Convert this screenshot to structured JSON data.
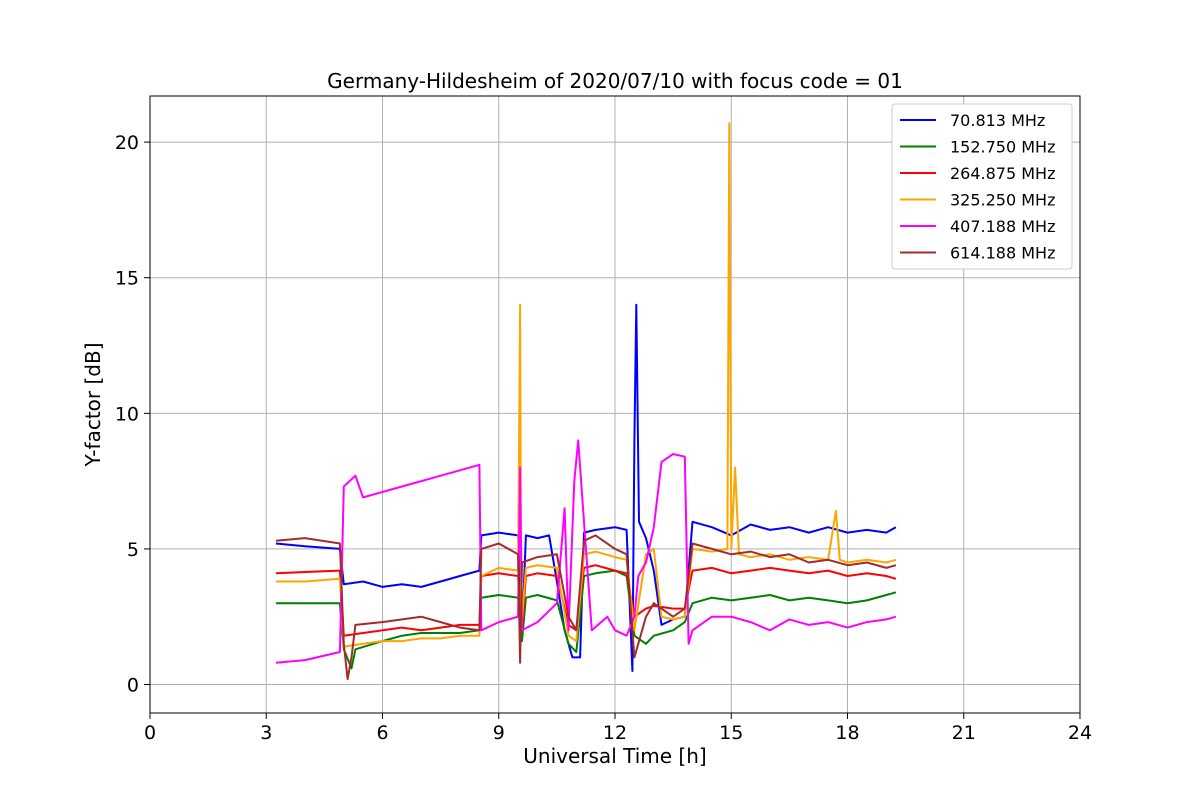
{
  "chart_data": {
    "type": "line",
    "title": "Germany-Hildesheim of 2020/07/10 with focus code = 01",
    "xlabel": "Universal Time [h]",
    "ylabel": "Y-factor [dB]",
    "xlim": [
      0,
      24
    ],
    "ylim": [
      -1.05,
      21.7
    ],
    "x_ticks": [
      0,
      3,
      6,
      9,
      12,
      15,
      18,
      21,
      24
    ],
    "y_ticks": [
      0,
      5,
      10,
      15,
      20
    ],
    "grid": true,
    "legend_position": "top-right",
    "series": [
      {
        "name": "  70.813 MHz",
        "color": "#0000ff",
        "points": [
          [
            3.25,
            5.2
          ],
          [
            4.0,
            5.1
          ],
          [
            4.9,
            5.0
          ],
          [
            5.0,
            3.7
          ],
          [
            5.5,
            3.8
          ],
          [
            6.0,
            3.6
          ],
          [
            6.5,
            3.7
          ],
          [
            7.0,
            3.6
          ],
          [
            7.5,
            3.8
          ],
          [
            8.0,
            4.0
          ],
          [
            8.5,
            4.2
          ],
          [
            8.55,
            5.5
          ],
          [
            9.0,
            5.6
          ],
          [
            9.5,
            5.5
          ],
          [
            9.6,
            1.8
          ],
          [
            9.7,
            5.5
          ],
          [
            10.0,
            5.4
          ],
          [
            10.3,
            5.5
          ],
          [
            10.5,
            3.8
          ],
          [
            10.7,
            2.0
          ],
          [
            10.9,
            1.0
          ],
          [
            11.1,
            1.0
          ],
          [
            11.2,
            5.6
          ],
          [
            11.5,
            5.7
          ],
          [
            12.0,
            5.8
          ],
          [
            12.3,
            5.7
          ],
          [
            12.45,
            0.5
          ],
          [
            12.5,
            9.0
          ],
          [
            12.55,
            14.0
          ],
          [
            12.62,
            6.0
          ],
          [
            12.8,
            5.4
          ],
          [
            13.0,
            4.2
          ],
          [
            13.2,
            2.2
          ],
          [
            13.5,
            2.4
          ],
          [
            13.8,
            2.5
          ],
          [
            14.0,
            6.0
          ],
          [
            14.5,
            5.8
          ],
          [
            15.0,
            5.5
          ],
          [
            15.5,
            5.9
          ],
          [
            16.0,
            5.7
          ],
          [
            16.5,
            5.8
          ],
          [
            17.0,
            5.6
          ],
          [
            17.5,
            5.8
          ],
          [
            18.0,
            5.6
          ],
          [
            18.5,
            5.7
          ],
          [
            19.0,
            5.6
          ],
          [
            19.25,
            5.8
          ]
        ]
      },
      {
        "name": "152.750 MHz",
        "color": "#008000",
        "points": [
          [
            3.25,
            3.0
          ],
          [
            4.0,
            3.0
          ],
          [
            4.9,
            3.0
          ],
          [
            5.0,
            1.3
          ],
          [
            5.2,
            0.6
          ],
          [
            5.3,
            1.3
          ],
          [
            6.0,
            1.6
          ],
          [
            6.5,
            1.8
          ],
          [
            7.0,
            1.9
          ],
          [
            7.5,
            1.9
          ],
          [
            8.0,
            1.9
          ],
          [
            8.5,
            2.0
          ],
          [
            8.55,
            3.2
          ],
          [
            9.0,
            3.3
          ],
          [
            9.5,
            3.2
          ],
          [
            9.6,
            1.6
          ],
          [
            9.7,
            3.2
          ],
          [
            10.0,
            3.3
          ],
          [
            10.5,
            3.1
          ],
          [
            10.8,
            1.5
          ],
          [
            11.0,
            1.2
          ],
          [
            11.2,
            4.0
          ],
          [
            11.5,
            4.1
          ],
          [
            12.0,
            4.2
          ],
          [
            12.3,
            4.0
          ],
          [
            12.5,
            1.8
          ],
          [
            12.8,
            1.5
          ],
          [
            13.0,
            1.8
          ],
          [
            13.5,
            2.0
          ],
          [
            13.8,
            2.3
          ],
          [
            14.0,
            3.0
          ],
          [
            14.5,
            3.2
          ],
          [
            15.0,
            3.1
          ],
          [
            15.5,
            3.2
          ],
          [
            16.0,
            3.3
          ],
          [
            16.5,
            3.1
          ],
          [
            17.0,
            3.2
          ],
          [
            17.5,
            3.1
          ],
          [
            18.0,
            3.0
          ],
          [
            18.5,
            3.1
          ],
          [
            19.0,
            3.3
          ],
          [
            19.25,
            3.4
          ]
        ]
      },
      {
        "name": "264.875 MHz",
        "color": "#ff0000",
        "points": [
          [
            3.25,
            4.1
          ],
          [
            4.0,
            4.15
          ],
          [
            4.9,
            4.2
          ],
          [
            5.0,
            1.8
          ],
          [
            5.5,
            1.9
          ],
          [
            6.0,
            2.0
          ],
          [
            6.5,
            2.1
          ],
          [
            7.0,
            2.0
          ],
          [
            7.5,
            2.1
          ],
          [
            8.0,
            2.2
          ],
          [
            8.5,
            2.2
          ],
          [
            8.55,
            4.0
          ],
          [
            9.0,
            4.1
          ],
          [
            9.5,
            4.0
          ],
          [
            9.6,
            2.0
          ],
          [
            9.7,
            4.0
          ],
          [
            10.0,
            4.1
          ],
          [
            10.5,
            4.0
          ],
          [
            10.8,
            2.2
          ],
          [
            11.0,
            2.0
          ],
          [
            11.2,
            4.3
          ],
          [
            11.5,
            4.4
          ],
          [
            12.0,
            4.2
          ],
          [
            12.3,
            4.1
          ],
          [
            12.5,
            2.5
          ],
          [
            12.8,
            2.8
          ],
          [
            13.0,
            2.9
          ],
          [
            13.5,
            2.8
          ],
          [
            13.8,
            2.8
          ],
          [
            14.0,
            4.2
          ],
          [
            14.5,
            4.3
          ],
          [
            15.0,
            4.1
          ],
          [
            15.5,
            4.2
          ],
          [
            16.0,
            4.3
          ],
          [
            16.5,
            4.2
          ],
          [
            17.0,
            4.1
          ],
          [
            17.5,
            4.2
          ],
          [
            18.0,
            4.0
          ],
          [
            18.5,
            4.1
          ],
          [
            19.0,
            4.0
          ],
          [
            19.25,
            3.9
          ]
        ]
      },
      {
        "name": "325.250 MHz",
        "color": "#ffa500",
        "points": [
          [
            3.25,
            3.8
          ],
          [
            4.0,
            3.8
          ],
          [
            4.9,
            3.9
          ],
          [
            5.0,
            1.4
          ],
          [
            5.5,
            1.5
          ],
          [
            6.0,
            1.6
          ],
          [
            6.5,
            1.6
          ],
          [
            7.0,
            1.7
          ],
          [
            7.5,
            1.7
          ],
          [
            8.0,
            1.8
          ],
          [
            8.5,
            1.8
          ],
          [
            8.55,
            4.0
          ],
          [
            9.0,
            4.3
          ],
          [
            9.5,
            4.2
          ],
          [
            9.55,
            14.0
          ],
          [
            9.58,
            2.0
          ],
          [
            9.7,
            4.3
          ],
          [
            10.0,
            4.4
          ],
          [
            10.5,
            4.3
          ],
          [
            10.8,
            1.8
          ],
          [
            11.0,
            1.6
          ],
          [
            11.2,
            4.8
          ],
          [
            11.5,
            4.9
          ],
          [
            12.0,
            4.7
          ],
          [
            12.3,
            4.6
          ],
          [
            12.5,
            2.0
          ],
          [
            12.8,
            4.8
          ],
          [
            13.0,
            5.0
          ],
          [
            13.2,
            2.5
          ],
          [
            13.5,
            2.4
          ],
          [
            13.8,
            2.5
          ],
          [
            14.0,
            5.0
          ],
          [
            14.5,
            4.9
          ],
          [
            14.9,
            5.0
          ],
          [
            14.95,
            20.7
          ],
          [
            15.0,
            5.0
          ],
          [
            15.1,
            8.0
          ],
          [
            15.2,
            4.8
          ],
          [
            15.5,
            4.7
          ],
          [
            16.0,
            4.8
          ],
          [
            16.5,
            4.6
          ],
          [
            17.0,
            4.7
          ],
          [
            17.5,
            4.6
          ],
          [
            17.7,
            6.4
          ],
          [
            17.8,
            4.6
          ],
          [
            18.0,
            4.5
          ],
          [
            18.5,
            4.6
          ],
          [
            19.0,
            4.5
          ],
          [
            19.25,
            4.6
          ]
        ]
      },
      {
        "name": "407.188 MHz",
        "color": "#ff00ff",
        "points": [
          [
            3.25,
            0.8
          ],
          [
            4.0,
            0.9
          ],
          [
            4.9,
            1.2
          ],
          [
            5.0,
            7.3
          ],
          [
            5.3,
            7.7
          ],
          [
            5.5,
            6.9
          ],
          [
            6.0,
            7.1
          ],
          [
            6.5,
            7.3
          ],
          [
            7.0,
            7.5
          ],
          [
            7.5,
            7.7
          ],
          [
            8.0,
            7.9
          ],
          [
            8.5,
            8.1
          ],
          [
            8.55,
            2.0
          ],
          [
            9.0,
            2.3
          ],
          [
            9.5,
            2.5
          ],
          [
            9.55,
            8.0
          ],
          [
            9.6,
            2.0
          ],
          [
            10.0,
            2.3
          ],
          [
            10.5,
            3.0
          ],
          [
            10.7,
            6.5
          ],
          [
            10.8,
            2.0
          ],
          [
            10.95,
            7.5
          ],
          [
            11.05,
            9.0
          ],
          [
            11.2,
            6.0
          ],
          [
            11.4,
            2.0
          ],
          [
            11.8,
            2.5
          ],
          [
            12.0,
            2.0
          ],
          [
            12.3,
            1.8
          ],
          [
            12.5,
            2.5
          ],
          [
            12.6,
            4.0
          ],
          [
            12.8,
            4.5
          ],
          [
            13.0,
            5.8
          ],
          [
            13.2,
            8.2
          ],
          [
            13.5,
            8.5
          ],
          [
            13.8,
            8.4
          ],
          [
            13.9,
            1.5
          ],
          [
            14.0,
            2.0
          ],
          [
            14.5,
            2.5
          ],
          [
            15.0,
            2.5
          ],
          [
            15.5,
            2.3
          ],
          [
            16.0,
            2.0
          ],
          [
            16.5,
            2.4
          ],
          [
            17.0,
            2.2
          ],
          [
            17.5,
            2.3
          ],
          [
            18.0,
            2.1
          ],
          [
            18.5,
            2.3
          ],
          [
            19.0,
            2.4
          ],
          [
            19.25,
            2.5
          ]
        ]
      },
      {
        "name": "614.188 MHz",
        "color": "#a52a2a",
        "points": [
          [
            3.25,
            5.3
          ],
          [
            4.0,
            5.4
          ],
          [
            4.9,
            5.2
          ],
          [
            5.0,
            1.5
          ],
          [
            5.1,
            0.2
          ],
          [
            5.2,
            1.0
          ],
          [
            5.3,
            2.2
          ],
          [
            6.0,
            2.3
          ],
          [
            6.5,
            2.4
          ],
          [
            7.0,
            2.5
          ],
          [
            7.5,
            2.3
          ],
          [
            8.0,
            2.1
          ],
          [
            8.5,
            2.0
          ],
          [
            8.55,
            5.0
          ],
          [
            9.0,
            5.2
          ],
          [
            9.5,
            4.8
          ],
          [
            9.55,
            0.8
          ],
          [
            9.6,
            4.5
          ],
          [
            10.0,
            4.7
          ],
          [
            10.5,
            4.8
          ],
          [
            10.8,
            2.5
          ],
          [
            11.0,
            2.0
          ],
          [
            11.2,
            5.3
          ],
          [
            11.5,
            5.5
          ],
          [
            12.0,
            5.0
          ],
          [
            12.3,
            4.8
          ],
          [
            12.5,
            1.0
          ],
          [
            12.8,
            2.5
          ],
          [
            13.0,
            3.0
          ],
          [
            13.5,
            2.5
          ],
          [
            13.8,
            2.8
          ],
          [
            14.0,
            5.2
          ],
          [
            14.5,
            5.0
          ],
          [
            15.0,
            4.8
          ],
          [
            15.5,
            4.9
          ],
          [
            16.0,
            4.7
          ],
          [
            16.5,
            4.8
          ],
          [
            17.0,
            4.5
          ],
          [
            17.5,
            4.6
          ],
          [
            18.0,
            4.4
          ],
          [
            18.5,
            4.5
          ],
          [
            19.0,
            4.3
          ],
          [
            19.25,
            4.4
          ]
        ]
      }
    ]
  }
}
